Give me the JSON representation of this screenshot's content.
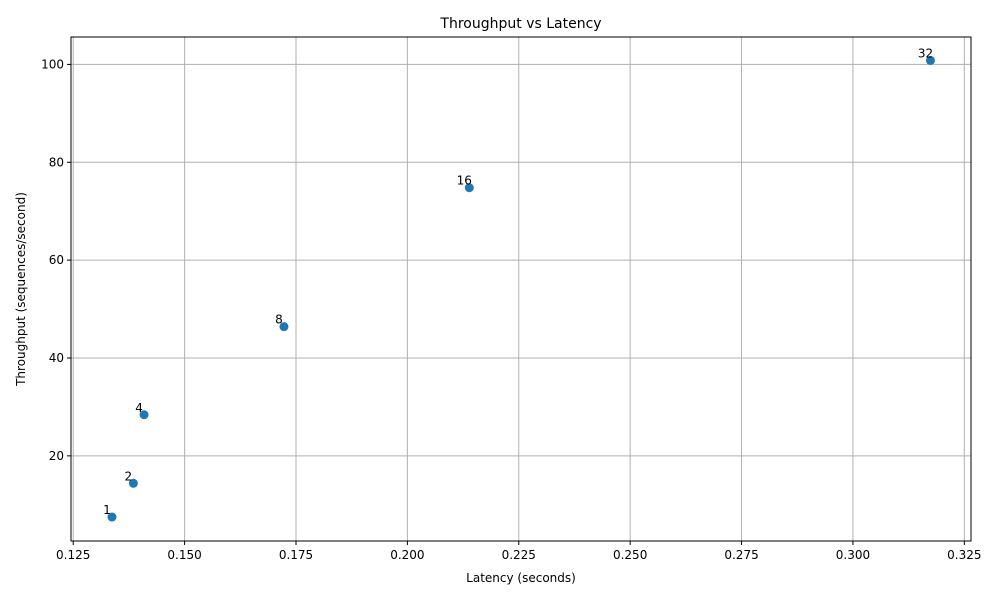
{
  "chart_data": {
    "type": "scatter",
    "title": "Throughput vs Latency",
    "xlabel": "Latency (seconds)",
    "ylabel": "Throughput (sequences/second)",
    "xlim": [
      0.1245,
      0.3265
    ],
    "ylim": [
      2.6,
      105.6
    ],
    "xticks": [
      0.125,
      0.15,
      0.175,
      0.2,
      0.225,
      0.25,
      0.275,
      0.3,
      0.325
    ],
    "xtick_labels": [
      "0.125",
      "0.150",
      "0.175",
      "0.200",
      "0.225",
      "0.250",
      "0.275",
      "0.300",
      "0.325"
    ],
    "yticks": [
      20,
      40,
      60,
      80,
      100
    ],
    "ytick_labels": [
      "20",
      "40",
      "60",
      "80",
      "100"
    ],
    "grid": true,
    "marker_color": "#1f77b4",
    "points": [
      {
        "label": "1",
        "x": 0.1337,
        "y": 7.5
      },
      {
        "label": "2",
        "x": 0.1385,
        "y": 14.4
      },
      {
        "label": "4",
        "x": 0.1409,
        "y": 28.4
      },
      {
        "label": "8",
        "x": 0.1723,
        "y": 46.4
      },
      {
        "label": "16",
        "x": 0.2139,
        "y": 74.8
      },
      {
        "label": "32",
        "x": 0.3174,
        "y": 100.8
      }
    ]
  }
}
